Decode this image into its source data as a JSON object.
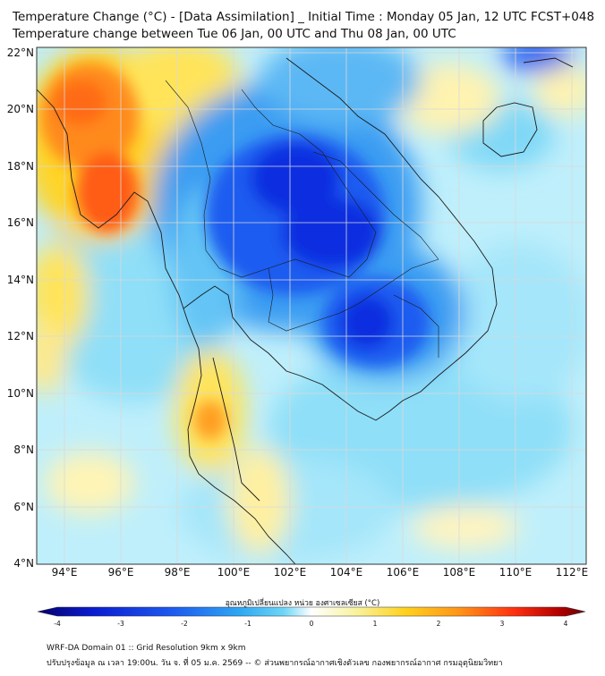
{
  "title": {
    "line1": "Temperature Change (°C) - [Data Assimilation] _ Initial Time : Monday 05 Jan, 12 UTC FCST+048",
    "line2": "Temperature change between Tue 06 Jan, 00 UTC and Thu 08 Jan, 00 UTC"
  },
  "map": {
    "lat_range": [
      4,
      22.2
    ],
    "lon_range": [
      93,
      112.6
    ],
    "lat_ticks": [
      "22°N",
      "20°N",
      "18°N",
      "16°N",
      "14°N",
      "12°N",
      "10°N",
      "8°N",
      "6°N",
      "4°N"
    ],
    "lon_ticks": [
      "94°E",
      "96°E",
      "98°E",
      "100°E",
      "102°E",
      "104°E",
      "106°E",
      "108°E",
      "110°E",
      "112°E"
    ]
  },
  "colorbar": {
    "title": "อุณหภูมิเปลี่ยนแปลง หน่วย องศาเซลเซียส (°C)",
    "ticks": [
      "-4",
      "-3",
      "-2",
      "-1",
      "0",
      "1",
      "2",
      "3",
      "4"
    ],
    "range": [
      -4,
      4
    ],
    "colors": [
      "#05006a",
      "#0a1cd0",
      "#1e5cf0",
      "#2ea8f2",
      "#6fd6f7",
      "#ffffff",
      "#f9f3a0",
      "#ffd21e",
      "#ff9418",
      "#ff3010",
      "#b40000",
      "#6a0000"
    ]
  },
  "footer": {
    "line1": "WRF-DA Domain 01 :: Grid Resolution 9km x 9km",
    "line2": "ปรับปรุงข้อมูล ณ เวลา 19:00น. วัน จ. ที่ 05 ม.ค. 2569 -- © ส่วนพยากรณ์อากาศเชิงตัวเลข กองพยากรณ์อากาศ กรมอุตุนิยมวิทยา"
  }
}
